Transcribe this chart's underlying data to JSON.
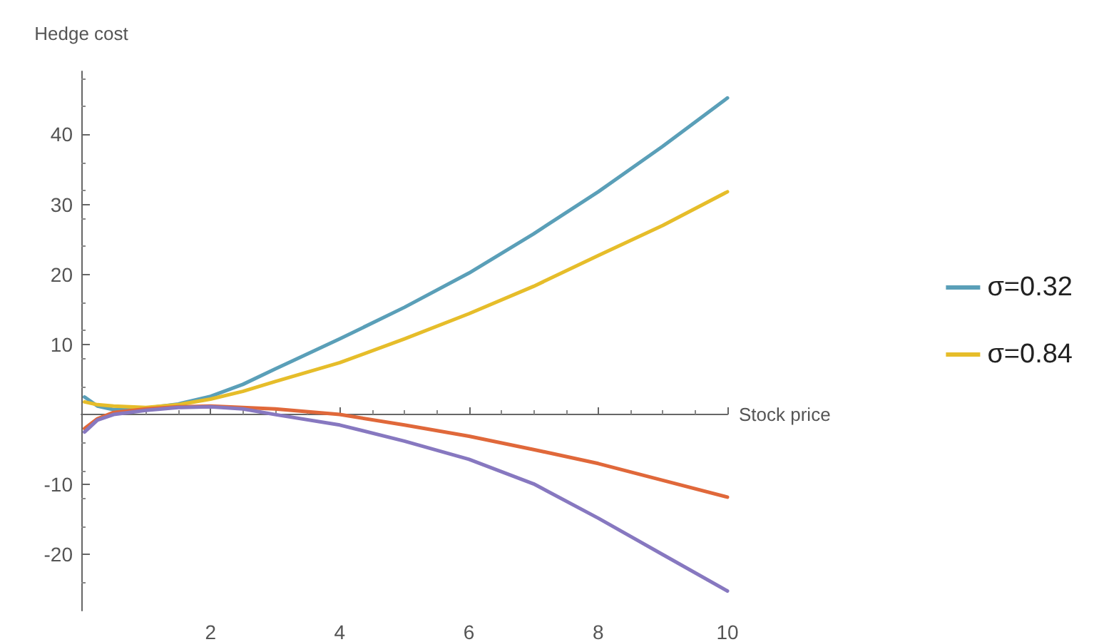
{
  "chart_data": {
    "type": "line",
    "xlabel": "Stock price",
    "ylabel": "Hedge cost",
    "x": [
      0.05,
      0.25,
      0.5,
      1,
      1.5,
      2,
      2.5,
      3,
      4,
      5,
      6,
      7,
      8,
      9,
      10
    ],
    "series": [
      {
        "name": "σ=0.32",
        "color": "#5a9fb8",
        "values": [
          2.5,
          1.2,
          0.7,
          0.9,
          1.5,
          2.6,
          4.3,
          6.5,
          10.8,
          15.3,
          20.2,
          25.8,
          31.8,
          38.3,
          45.2
        ]
      },
      {
        "name": "σ=0.84",
        "color": "#e6bd2a",
        "values": [
          1.8,
          1.4,
          1.2,
          1.0,
          1.4,
          2.2,
          3.3,
          4.7,
          7.4,
          10.8,
          14.4,
          18.3,
          22.7,
          27.0,
          31.8
        ]
      },
      {
        "color": "#e0683a",
        "values": [
          -2.0,
          -0.6,
          0.3,
          0.8,
          1.1,
          1.2,
          1.0,
          0.8,
          0.0,
          -1.5,
          -3.1,
          -5.0,
          -7.0,
          -9.4,
          -11.8
        ]
      },
      {
        "color": "#8778c0",
        "values": [
          -2.5,
          -0.8,
          0.0,
          0.6,
          1.0,
          1.1,
          0.8,
          0.0,
          -1.5,
          -3.8,
          -6.4,
          -9.9,
          -14.8,
          -20.0,
          -25.2
        ]
      }
    ],
    "xlim": [
      0,
      10
    ],
    "xticks": [
      2,
      4,
      6,
      8,
      10
    ],
    "ylim": [
      -28,
      49
    ],
    "yticks": [
      -20,
      -10,
      10,
      20,
      30,
      40
    ],
    "grid": false,
    "legend": "right",
    "marker": "none",
    "line_style": "solid"
  }
}
